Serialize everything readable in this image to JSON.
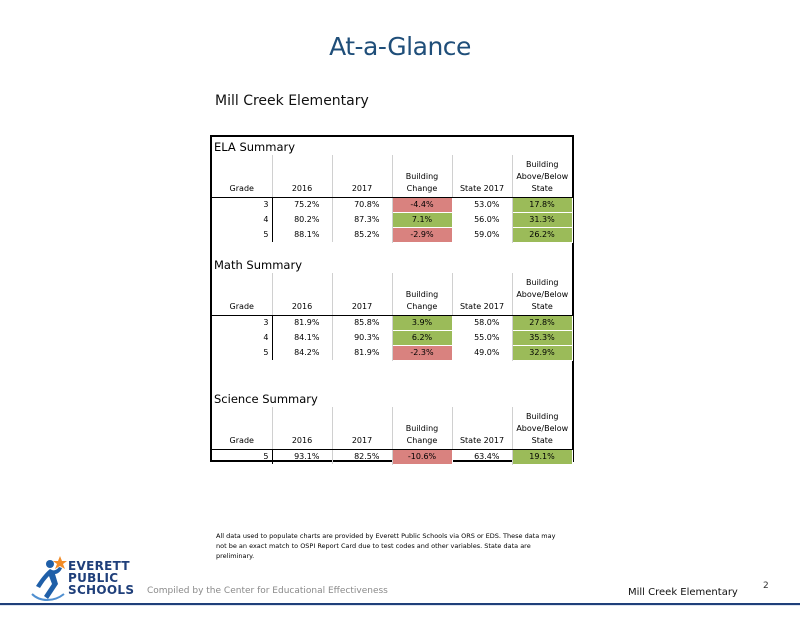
{
  "slide": {
    "title": "At-a-Glance",
    "school_name": "Mill Creek Elementary"
  },
  "headers": {
    "grade": "Grade",
    "y2016": "2016",
    "y2017": "2017",
    "change_line1": "Building",
    "change_line2": "Change",
    "state": "State 2017",
    "above_line1": "Building",
    "above_line2": "Above/Below",
    "above_line3": "State"
  },
  "ela": {
    "title": "ELA Summary",
    "rows": [
      {
        "grade": "3",
        "y2016": "75.2%",
        "y2017": "70.8%",
        "change": "-4.4%",
        "state": "53.0%",
        "above": "17.8%"
      },
      {
        "grade": "4",
        "y2016": "80.2%",
        "y2017": "87.3%",
        "change": "7.1%",
        "state": "56.0%",
        "above": "31.3%"
      },
      {
        "grade": "5",
        "y2016": "88.1%",
        "y2017": "85.2%",
        "change": "-2.9%",
        "state": "59.0%",
        "above": "26.2%"
      }
    ]
  },
  "math": {
    "title": "Math Summary",
    "rows": [
      {
        "grade": "3",
        "y2016": "81.9%",
        "y2017": "85.8%",
        "change": "3.9%",
        "state": "58.0%",
        "above": "27.8%"
      },
      {
        "grade": "4",
        "y2016": "84.1%",
        "y2017": "90.3%",
        "change": "6.2%",
        "state": "55.0%",
        "above": "35.3%"
      },
      {
        "grade": "5",
        "y2016": "84.2%",
        "y2017": "81.9%",
        "change": "-2.3%",
        "state": "49.0%",
        "above": "32.9%"
      }
    ]
  },
  "science": {
    "title": "Science Summary",
    "rows": [
      {
        "grade": "5",
        "y2016": "93.1%",
        "y2017": "82.5%",
        "change": "-10.6%",
        "state": "63.4%",
        "above": "19.1%"
      }
    ]
  },
  "colors": {
    "positive": "#9bbb59",
    "negative": "#d9827f",
    "title": "#1f4e79",
    "brand": "#1f3f7a"
  },
  "footnote": "All data used to populate charts are provided by Everett Public Schools via ORS or EDS. These data may not be an exact match to OSPI Report Card due to test codes and other variables. State data are preliminary.",
  "footer": {
    "logo_line1": "EVERETT",
    "logo_line2": "PUBLIC",
    "logo_line3": "SCHOOLS",
    "logo_icon": "running-figure-star-icon",
    "compiled_by": "Compiled by the Center for Educational Effectiveness",
    "school_name": "Mill Creek Elementary",
    "page_number": "2"
  }
}
